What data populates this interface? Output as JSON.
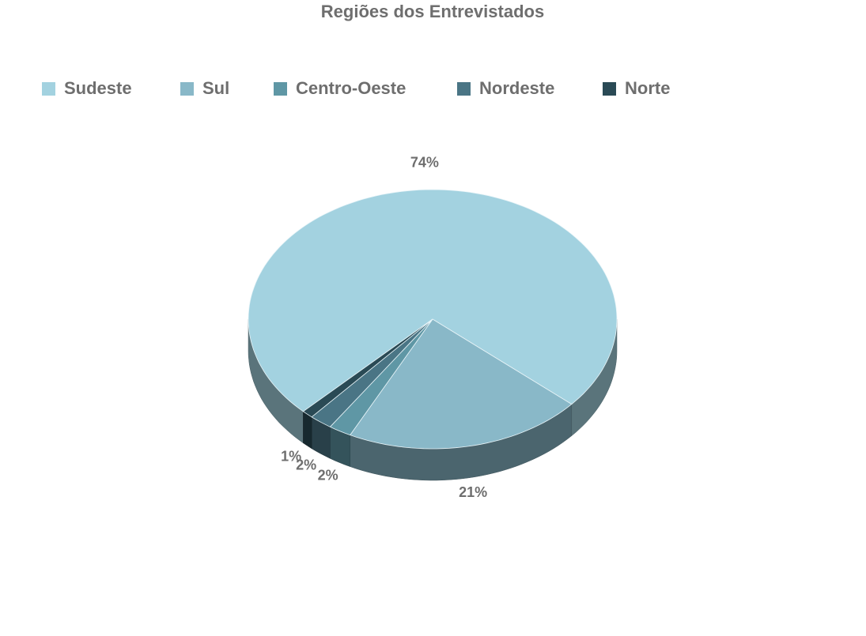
{
  "chart_data": {
    "type": "pie",
    "title": "Regiões dos Entrevistados",
    "categories": [
      "Sudeste",
      "Sul",
      "Centro-Oeste",
      "Nordeste",
      "Norte"
    ],
    "values": [
      74,
      21,
      2,
      2,
      1
    ],
    "value_labels": [
      "74%",
      "21%",
      "2%",
      "2%",
      "1%"
    ],
    "colors": [
      "#a3d2e0",
      "#89b8c8",
      "#5f97a5",
      "#4a7585",
      "#2a4a55"
    ],
    "legend": "top"
  }
}
